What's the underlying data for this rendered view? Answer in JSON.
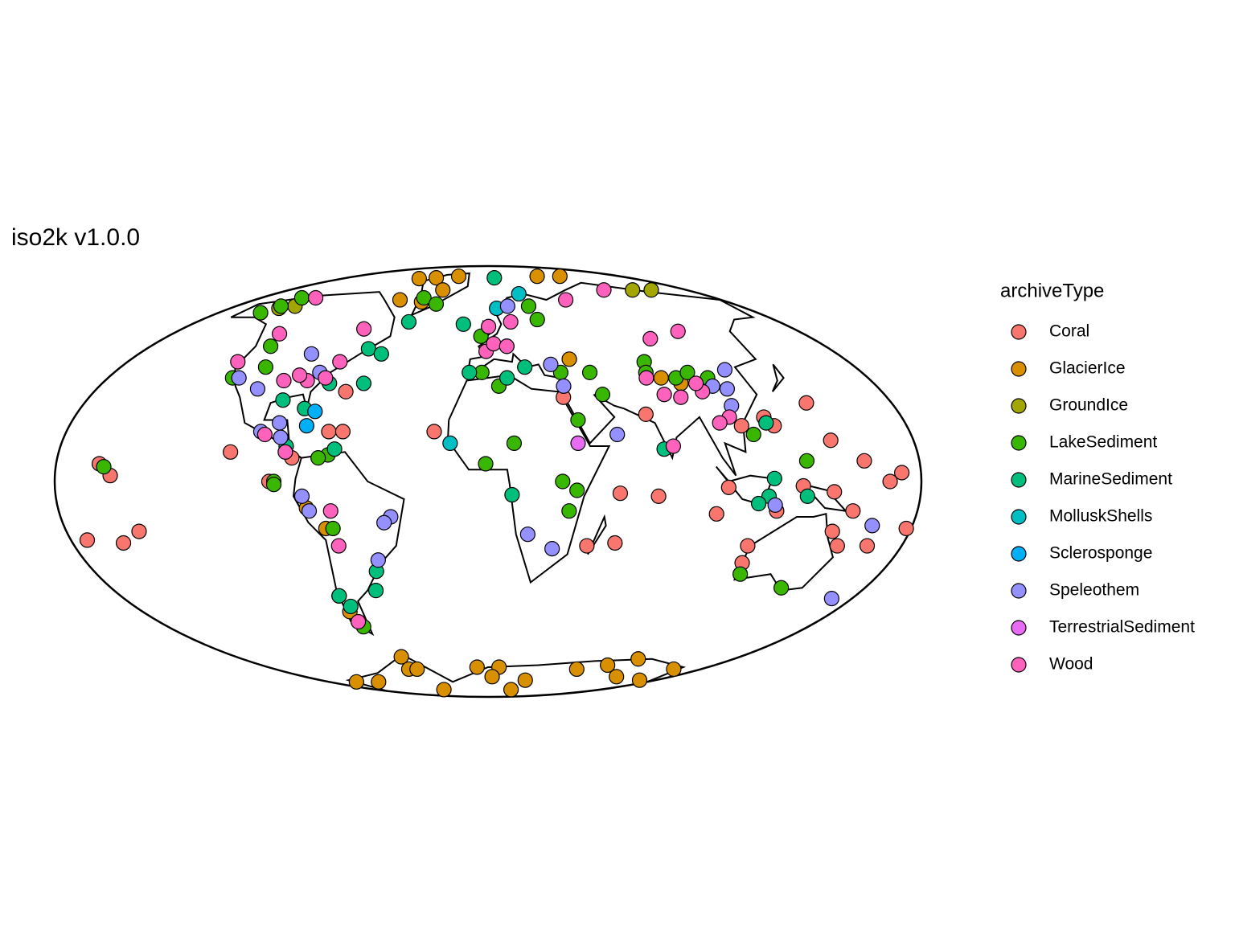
{
  "chart_data": {
    "type": "scatter",
    "title": "iso2k v1.0.0",
    "legend_title": "archiveType",
    "series": [
      {
        "name": "Coral",
        "color": "#F8766D",
        "lon": [
          -162,
          -157,
          -173,
          -158,
          -149,
          -108,
          -91,
          -65,
          -68,
          -62,
          -82,
          -23,
          34,
          69,
          55,
          71,
          55,
          43,
          142,
          145,
          157,
          172,
          167,
          178,
          152,
          165,
          153,
          147,
          113,
          114,
          96,
          100,
          120,
          123,
          109,
          131,
          121,
          144
        ],
        "lat": [
          6,
          2,
          -20,
          -21,
          -17,
          10,
          0,
          31,
          17,
          17,
          8,
          17,
          29,
          23,
          -4,
          -5,
          -21,
          -22,
          27,
          14,
          7,
          3,
          0,
          -16,
          -22,
          -22,
          -10,
          -17,
          -22,
          -28,
          -11,
          -2,
          22,
          19,
          19,
          -1.5,
          -10,
          -3.5
        ]
      },
      {
        "name": "GlacierIce",
        "color": "#D89000",
        "lon": [
          -85,
          -66,
          -40,
          -68,
          67,
          98,
          -50,
          -41,
          41,
          82,
          90,
          -76,
          -69,
          -72,
          -149,
          -124,
          -62,
          -67,
          -71,
          -9,
          9,
          37,
          40,
          75,
          95,
          126,
          110,
          157,
          163,
          4,
          -60
        ],
        "lat": [
          79.5,
          80,
          81,
          68,
          81,
          81,
          67,
          73,
          43,
          36,
          34,
          -9,
          -16,
          -46,
          -78,
          -78,
          -65,
          -71,
          -83,
          -70,
          -70,
          -83,
          -77,
          -71,
          -69,
          -75,
          -66,
          -71,
          -77,
          -75,
          -71
        ]
      },
      {
        "name": "GroundIce",
        "color": "#A3A500",
        "lon": [
          131,
          148,
          -138,
          -146
        ],
        "lat": [
          73,
          73,
          65,
          64
        ]
      },
      {
        "name": "LakeSediment",
        "color": "#39B600",
        "lon": [
          -152,
          -148,
          -148,
          -116,
          -109,
          -121,
          -67,
          -71,
          -89,
          -160,
          -66,
          -73,
          -70,
          -51,
          -38,
          -4,
          -3,
          5,
          29,
          31,
          35,
          49,
          52,
          39,
          11,
          -1,
          31,
          37,
          34,
          78,
          76,
          89,
          104,
          96,
          113,
          133,
          116,
          140,
          -89
        ],
        "lat": [
          62,
          65,
          69,
          48,
          40,
          36,
          9,
          8,
          0,
          5,
          -16,
          -40,
          -52,
          69,
          66,
          52,
          38,
          33,
          65,
          59,
          38,
          38,
          30,
          21,
          13,
          6,
          0,
          -3,
          -10,
          42,
          38,
          36,
          36,
          38,
          16,
          7,
          -32,
          -37,
          -1
        ]
      },
      {
        "name": "MarineSediment",
        "color": "#00BF7D",
        "lon": [
          -49,
          -63,
          -55,
          -58,
          -92,
          -81,
          -74,
          -64.5,
          -85,
          -15,
          -9,
          9,
          18,
          8,
          10,
          74,
          120,
          119,
          117,
          133,
          113,
          -51,
          -54,
          -73,
          -70
        ],
        "lat": [
          58,
          47,
          45,
          34,
          28,
          25,
          34,
          11,
          12,
          57,
          38,
          36,
          40,
          80,
          -4.5,
          11,
          20,
          1,
          -5,
          -5,
          -7.5,
          -31,
          -38,
          -40,
          -44
        ]
      },
      {
        "name": "MolluskShells",
        "color": "#00BFC4",
        "lon": [
          26,
          -16,
          6
        ],
        "lat": [
          71,
          13,
          64
        ]
      },
      {
        "name": "Sclerosponge",
        "color": "#00B0F6",
        "lon": [
          -76,
          -78
        ],
        "lat": [
          24,
          19
        ]
      },
      {
        "name": "Speleothem",
        "color": "#9590FF",
        "lon": [
          -106,
          -118,
          -91,
          -81,
          -90,
          -97,
          -88,
          -77.5,
          -75,
          -41,
          -44,
          -49,
          14,
          31,
          35,
          55,
          17,
          28,
          104,
          115,
          110,
          108,
          120,
          163,
          170
        ],
        "lat": [
          32,
          36,
          45,
          38,
          20,
          17,
          15,
          -5,
          -10,
          -12,
          -14,
          -27,
          65,
          41,
          33,
          16,
          -18,
          -23,
          33,
          39,
          32,
          26,
          -8,
          -15,
          -41
        ]
      },
      {
        "name": "TerrestrialSediment",
        "color": "#E76BF3",
        "lon": [
          38,
          10
        ],
        "lat": [
          13,
          48
        ]
      },
      {
        "name": "Wood",
        "color": "#FF62BC",
        "lon": [
          -137,
          -119,
          -125,
          -96,
          -85,
          -77,
          -90,
          -74,
          -73,
          -95,
          -85,
          -66,
          -65,
          -71,
          0.3,
          14,
          -1,
          3,
          10,
          105,
          60,
          110,
          90,
          75,
          80,
          87,
          98,
          97,
          105,
          100,
          78
        ],
        "lat": [
          69,
          53,
          42,
          35,
          35,
          36,
          37,
          42,
          55,
          16,
          10,
          -10,
          -22,
          -50,
          56,
          58,
          46,
          49,
          48,
          73,
          68,
          54,
          51,
          36,
          30,
          29,
          31,
          34,
          22,
          20,
          12
        ]
      }
    ]
  }
}
